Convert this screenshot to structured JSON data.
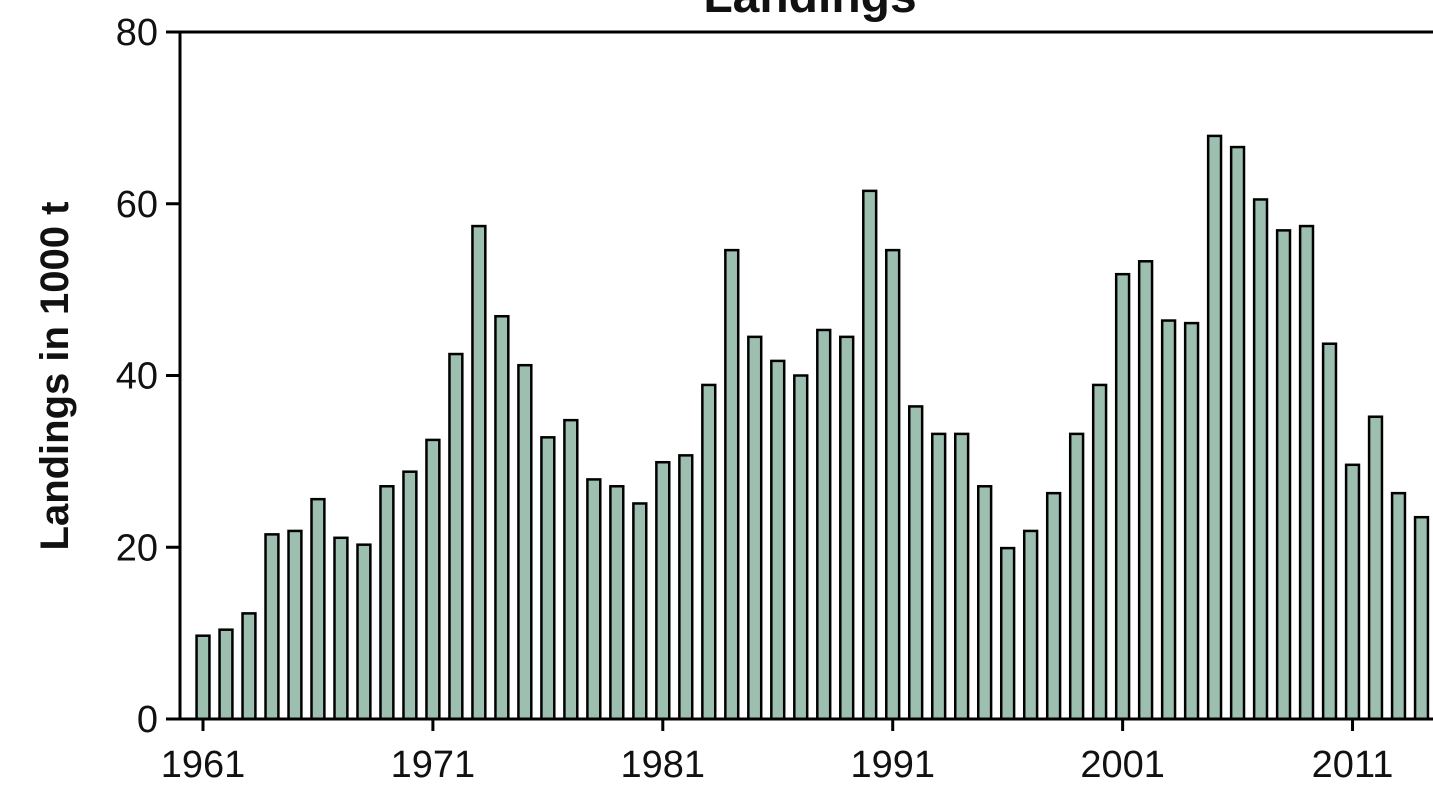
{
  "chart_data": {
    "type": "bar",
    "title": "Landings",
    "ylabel": "Landings in 1000 t",
    "x": [
      1961,
      1962,
      1963,
      1964,
      1965,
      1966,
      1967,
      1968,
      1969,
      1970,
      1971,
      1972,
      1973,
      1974,
      1975,
      1976,
      1977,
      1978,
      1979,
      1980,
      1981,
      1982,
      1983,
      1984,
      1985,
      1986,
      1987,
      1988,
      1989,
      1990,
      1991,
      1992,
      1993,
      1994,
      1995,
      1996,
      1997,
      1998,
      1999,
      2000,
      2001,
      2002,
      2003,
      2004,
      2005,
      2006,
      2007,
      2008,
      2009,
      2010,
      2011,
      2012,
      2013,
      2014
    ],
    "values": [
      9.7,
      10.4,
      12.3,
      21.5,
      21.9,
      25.6,
      21.1,
      20.3,
      27.1,
      28.8,
      32.5,
      42.5,
      57.4,
      46.9,
      41.2,
      32.8,
      34.8,
      27.9,
      27.1,
      25.1,
      29.9,
      30.7,
      38.9,
      54.6,
      44.5,
      41.7,
      40.0,
      45.3,
      44.5,
      61.5,
      54.6,
      36.4,
      33.2,
      33.2,
      27.1,
      19.9,
      21.9,
      26.3,
      33.2,
      38.9,
      51.8,
      53.3,
      46.4,
      46.1,
      67.9,
      66.6,
      60.5,
      56.9,
      57.4,
      43.7,
      29.6,
      35.2,
      26.3,
      23.5
    ],
    "color": "#9dbfb0",
    "xlim": [
      1960,
      2014.5
    ],
    "xticks": [
      1961,
      1971,
      1981,
      1991,
      2001,
      2011
    ],
    "ylim": [
      0,
      80
    ],
    "yticks": [
      0,
      20,
      40,
      60,
      80
    ]
  }
}
